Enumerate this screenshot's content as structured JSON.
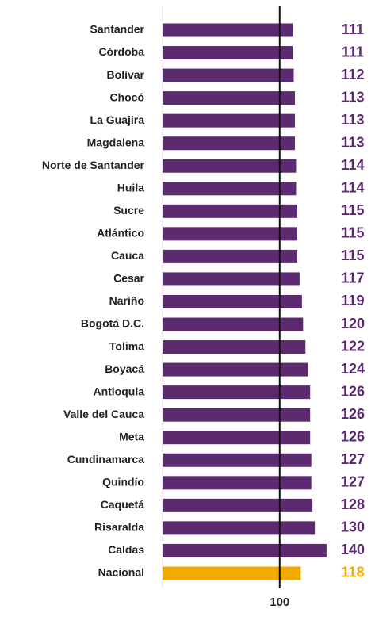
{
  "chart_data": {
    "type": "barh",
    "categories": [
      "Santander",
      "Córdoba",
      "Bolívar",
      "Chocó",
      "La Guajira",
      "Magdalena",
      "Norte de Santander",
      "Huila",
      "Sucre",
      "Atlántico",
      "Cauca",
      "Cesar",
      "Nariño",
      "Bogotá D.C.",
      "Tolima",
      "Boyacá",
      "Antioquia",
      "Valle del Cauca",
      "Meta",
      "Cundinamarca",
      "Quindío",
      "Caquetá",
      "Risaralda",
      "Caldas",
      "Nacional"
    ],
    "values": [
      111,
      111,
      112,
      113,
      113,
      113,
      114,
      114,
      115,
      115,
      115,
      117,
      119,
      120,
      122,
      124,
      126,
      126,
      126,
      127,
      127,
      128,
      130,
      140,
      118
    ],
    "colors": [
      "#5c2a6e",
      "#5c2a6e",
      "#5c2a6e",
      "#5c2a6e",
      "#5c2a6e",
      "#5c2a6e",
      "#5c2a6e",
      "#5c2a6e",
      "#5c2a6e",
      "#5c2a6e",
      "#5c2a6e",
      "#5c2a6e",
      "#5c2a6e",
      "#5c2a6e",
      "#5c2a6e",
      "#5c2a6e",
      "#5c2a6e",
      "#5c2a6e",
      "#5c2a6e",
      "#5c2a6e",
      "#5c2a6e",
      "#5c2a6e",
      "#5c2a6e",
      "#5c2a6e",
      "#f2a900"
    ],
    "xlim": [
      0,
      180
    ],
    "xticks": [
      100
    ]
  }
}
